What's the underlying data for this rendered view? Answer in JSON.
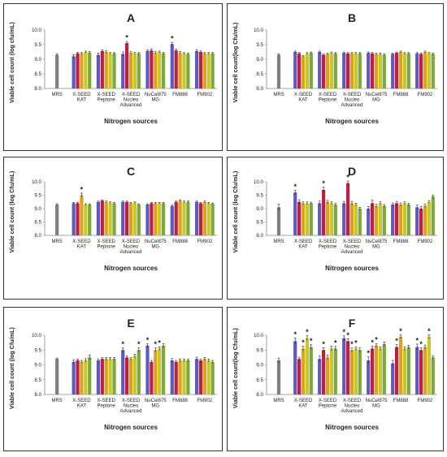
{
  "chart_data": [
    {
      "type": "bar",
      "title": "A",
      "ylabel": "Viable cell count (log cfu/mL)",
      "xlabel": "Nitrogen sources",
      "ylim": [
        8.0,
        10.0
      ],
      "yticks": [
        "8.0",
        "8.5",
        "9.0",
        "9.5",
        "10.0"
      ],
      "control": {
        "label": "MRS",
        "value": 9.15,
        "err": 0.04
      },
      "categories": [
        "X-SEED KAT",
        "X-SEED Peptone",
        "X-SEED Nucleo Advanced",
        "NuCel875 MG",
        "FM888",
        "FM902"
      ],
      "values": [
        [
          9.1,
          9.2,
          9.2,
          9.25,
          9.23
        ],
        [
          9.15,
          9.28,
          9.25,
          9.2,
          9.2
        ],
        [
          9.18,
          9.55,
          9.22,
          9.2,
          9.2
        ],
        [
          9.28,
          9.3,
          9.22,
          9.25,
          9.2
        ],
        [
          9.52,
          9.3,
          9.22,
          9.2,
          9.18
        ],
        [
          9.28,
          9.25,
          9.2,
          9.2,
          9.2
        ]
      ],
      "errors": [
        [
          0.06,
          0.04,
          0.03,
          0.03,
          0.03
        ],
        [
          0.06,
          0.04,
          0.04,
          0.03,
          0.03
        ],
        [
          0.07,
          0.06,
          0.04,
          0.03,
          0.03
        ],
        [
          0.05,
          0.05,
          0.04,
          0.03,
          0.03
        ],
        [
          0.06,
          0.05,
          0.04,
          0.03,
          0.03
        ],
        [
          0.05,
          0.04,
          0.03,
          0.03,
          0.03
        ]
      ],
      "stars": [
        [
          0,
          0,
          0,
          0,
          0
        ],
        [
          0,
          0,
          0,
          0,
          0
        ],
        [
          0,
          1,
          0,
          0,
          0
        ],
        [
          0,
          0,
          0,
          0,
          0
        ],
        [
          1,
          0,
          0,
          0,
          0
        ],
        [
          0,
          0,
          0,
          0,
          0
        ]
      ]
    },
    {
      "type": "bar",
      "title": "B",
      "ylabel": "Viable cell count(log Cfu/mL)",
      "xlabel": "Nitrogen sources",
      "ylim": [
        8.0,
        10.0
      ],
      "yticks": [
        "8.0",
        "8.5",
        "9.0",
        "9.5",
        "10.0"
      ],
      "control": {
        "label": "MRS",
        "value": 9.15,
        "err": 0.03
      },
      "categories": [
        "X-SEED KAT",
        "X-SEED Peptone",
        "X-SEED Nucleo Advanced",
        "NuCel875 MG",
        "FM888",
        "FM902"
      ],
      "values": [
        [
          9.25,
          9.2,
          9.1,
          9.2,
          9.22
        ],
        [
          9.25,
          9.15,
          9.18,
          9.22,
          9.2
        ],
        [
          9.22,
          9.2,
          9.2,
          9.2,
          9.2
        ],
        [
          9.22,
          9.2,
          9.18,
          9.18,
          9.15
        ],
        [
          9.18,
          9.22,
          9.25,
          9.2,
          9.2
        ],
        [
          9.2,
          9.18,
          9.25,
          9.2,
          9.18
        ]
      ],
      "errors": [
        [
          0.03,
          0.03,
          0.03,
          0.03,
          0.03
        ],
        [
          0.03,
          0.03,
          0.03,
          0.03,
          0.03
        ],
        [
          0.03,
          0.03,
          0.03,
          0.03,
          0.03
        ],
        [
          0.03,
          0.03,
          0.03,
          0.03,
          0.03
        ],
        [
          0.03,
          0.03,
          0.03,
          0.03,
          0.03
        ],
        [
          0.03,
          0.03,
          0.03,
          0.03,
          0.03
        ]
      ],
      "stars": [
        [
          0,
          0,
          0,
          0,
          0
        ],
        [
          0,
          0,
          0,
          0,
          0
        ],
        [
          0,
          0,
          0,
          0,
          0
        ],
        [
          0,
          0,
          0,
          0,
          0
        ],
        [
          0,
          0,
          0,
          0,
          0
        ],
        [
          0,
          0,
          0,
          0,
          0
        ]
      ]
    },
    {
      "type": "bar",
      "title": "C",
      "ylabel": "Viable cell count (log Cfu/mL)",
      "xlabel": "Nitrogen sources",
      "ylim": [
        8.0,
        10.0
      ],
      "yticks": [
        "8.0",
        "8.5",
        "9.0",
        "9.5",
        "10.0"
      ],
      "control": {
        "label": "MRS",
        "value": 9.15,
        "err": 0.03
      },
      "categories": [
        "X-SEED KAT",
        "X-SEED Peptone",
        "X-SEED Nucleo Advanced",
        "NuCel875 MG",
        "FM888",
        "FM902"
      ],
      "values": [
        [
          9.2,
          9.2,
          9.5,
          9.15,
          9.15
        ],
        [
          9.25,
          9.3,
          9.25,
          9.22,
          9.2
        ],
        [
          9.25,
          9.25,
          9.2,
          9.22,
          9.15
        ],
        [
          9.15,
          9.2,
          9.2,
          9.2,
          9.2
        ],
        [
          9.1,
          9.25,
          9.3,
          9.25,
          9.25
        ],
        [
          9.25,
          9.2,
          9.25,
          9.2,
          9.18
        ]
      ],
      "errors": [
        [
          0.03,
          0.04,
          0.08,
          0.03,
          0.03
        ],
        [
          0.03,
          0.03,
          0.03,
          0.03,
          0.03
        ],
        [
          0.03,
          0.03,
          0.03,
          0.03,
          0.03
        ],
        [
          0.03,
          0.03,
          0.03,
          0.03,
          0.03
        ],
        [
          0.03,
          0.03,
          0.03,
          0.03,
          0.03
        ],
        [
          0.03,
          0.03,
          0.03,
          0.03,
          0.03
        ]
      ],
      "stars": [
        [
          0,
          0,
          1,
          0,
          0
        ],
        [
          0,
          0,
          0,
          0,
          0
        ],
        [
          0,
          0,
          0,
          0,
          0
        ],
        [
          0,
          0,
          0,
          0,
          0
        ],
        [
          0,
          0,
          0,
          0,
          0
        ],
        [
          0,
          0,
          0,
          0,
          0
        ]
      ]
    },
    {
      "type": "bar",
      "title": "D",
      "ylabel": "Viable cell count (log Cfu/mL)",
      "xlabel": "Nitrogen sources",
      "ylim": [
        8.0,
        10.0
      ],
      "yticks": [
        "8.0",
        "8.5",
        "9.0",
        "9.5",
        "10.0"
      ],
      "control": {
        "label": "MRS",
        "value": 9.05,
        "err": 0.12
      },
      "categories": [
        "X-SEED KAT",
        "X-SEED Peptone",
        "X-SEED Nucleo Advanced",
        "NuCel875 MG",
        "FM888",
        "FM902"
      ],
      "values": [
        [
          9.6,
          9.25,
          9.2,
          9.2,
          9.2
        ],
        [
          9.2,
          9.7,
          9.25,
          9.2,
          9.15
        ],
        [
          9.2,
          9.95,
          9.2,
          9.15,
          9.0
        ],
        [
          9.0,
          9.2,
          9.1,
          9.2,
          9.1
        ],
        [
          9.15,
          9.2,
          9.15,
          9.2,
          9.15
        ],
        [
          9.05,
          9.0,
          9.1,
          9.25,
          9.45
        ]
      ],
      "errors": [
        [
          0.08,
          0.08,
          0.05,
          0.05,
          0.04
        ],
        [
          0.08,
          0.1,
          0.06,
          0.05,
          0.04
        ],
        [
          0.07,
          0.08,
          0.07,
          0.05,
          0.05
        ],
        [
          0.08,
          0.12,
          0.06,
          0.05,
          0.05
        ],
        [
          0.06,
          0.07,
          0.06,
          0.05,
          0.05
        ],
        [
          0.08,
          0.08,
          0.06,
          0.05,
          0.06
        ]
      ],
      "stars": [
        [
          1,
          0,
          0,
          0,
          0
        ],
        [
          0,
          1,
          0,
          0,
          0
        ],
        [
          0,
          1,
          0,
          0,
          0
        ],
        [
          0,
          0,
          0,
          0,
          0
        ],
        [
          0,
          0,
          0,
          0,
          0
        ],
        [
          0,
          0,
          0,
          0,
          0
        ]
      ]
    },
    {
      "type": "bar",
      "title": "E",
      "ylabel": "Viable cell count (log Cfu/mL)",
      "xlabel": "Nitrogen sources",
      "ylim": [
        8.0,
        10.0
      ],
      "yticks": [
        "8.0",
        "8.5",
        "9.0",
        "9.5",
        "10.0"
      ],
      "control": {
        "label": "MRS",
        "value": 9.2,
        "err": 0.03
      },
      "categories": [
        "X-SEED KAT",
        "X-SEED Peptone",
        "X-SEED Nucleo Advanced",
        "NuCel875 MG",
        "FM888",
        "FM902"
      ],
      "values": [
        [
          9.1,
          9.15,
          9.1,
          9.15,
          9.25
        ],
        [
          9.15,
          9.2,
          9.2,
          9.2,
          9.2
        ],
        [
          9.5,
          9.25,
          9.2,
          9.3,
          9.5
        ],
        [
          9.65,
          9.1,
          9.5,
          9.55,
          9.65
        ],
        [
          9.15,
          9.1,
          9.15,
          9.15,
          9.15
        ],
        [
          9.2,
          9.15,
          9.2,
          9.15,
          9.1
        ]
      ],
      "errors": [
        [
          0.06,
          0.05,
          0.05,
          0.06,
          0.08
        ],
        [
          0.05,
          0.05,
          0.05,
          0.05,
          0.05
        ],
        [
          0.07,
          0.06,
          0.05,
          0.06,
          0.07
        ],
        [
          0.06,
          0.05,
          0.07,
          0.06,
          0.06
        ],
        [
          0.06,
          0.05,
          0.05,
          0.05,
          0.05
        ],
        [
          0.06,
          0.05,
          0.05,
          0.05,
          0.05
        ]
      ],
      "stars": [
        [
          0,
          0,
          0,
          0,
          0
        ],
        [
          0,
          0,
          0,
          0,
          0
        ],
        [
          1,
          0,
          0,
          0,
          1
        ],
        [
          1,
          0,
          1,
          1,
          0
        ],
        [
          0,
          0,
          0,
          0,
          0
        ],
        [
          0,
          0,
          0,
          0,
          0
        ]
      ]
    },
    {
      "type": "bar",
      "title": "F",
      "ylabel": "Viable cell count(log Cfu/mL)",
      "xlabel": "Nitrogen sources",
      "ylim": [
        8.0,
        10.0
      ],
      "yticks": [
        "8.0",
        "8.5",
        "9.0",
        "9.5",
        "10.0"
      ],
      "control": {
        "label": "MRS",
        "value": 9.15,
        "err": 0.08
      },
      "categories": [
        "X-SEED KAT",
        "X-SEED Peptone",
        "X-SEED Nucleo Advanced",
        "NuCel875 MG",
        "FM888",
        "FM902"
      ],
      "values": [
        [
          9.8,
          9.2,
          9.55,
          9.9,
          9.6
        ],
        [
          9.2,
          9.5,
          9.25,
          9.55,
          9.55
        ],
        [
          9.9,
          9.8,
          9.5,
          9.55,
          9.5
        ],
        [
          9.15,
          9.55,
          9.65,
          9.55,
          9.7
        ],
        [
          9.05,
          9.6,
          9.95,
          9.55,
          9.6
        ],
        [
          9.6,
          9.5,
          9.6,
          9.95,
          9.25
        ]
      ],
      "errors": [
        [
          0.1,
          0.06,
          0.08,
          0.08,
          0.08
        ],
        [
          0.1,
          0.08,
          0.08,
          0.08,
          0.07
        ],
        [
          0.08,
          0.08,
          0.07,
          0.06,
          0.07
        ],
        [
          0.12,
          0.08,
          0.07,
          0.06,
          0.07
        ],
        [
          0.1,
          0.08,
          0.06,
          0.06,
          0.06
        ],
        [
          0.1,
          0.08,
          0.07,
          0.06,
          0.05
        ]
      ],
      "stars": [
        [
          1,
          0,
          1,
          1,
          1
        ],
        [
          0,
          1,
          0,
          0,
          1
        ],
        [
          1,
          1,
          1,
          1,
          0
        ],
        [
          1,
          1,
          1,
          0,
          0
        ],
        [
          0,
          1,
          1,
          0,
          0
        ],
        [
          1,
          1,
          0,
          1,
          0
        ]
      ]
    }
  ],
  "colors": {
    "control": "#7f7f7f",
    "series": [
      "#5b5bbf",
      "#c02040",
      "#e0a020",
      "#c8c82a",
      "#7aaa3c"
    ]
  }
}
